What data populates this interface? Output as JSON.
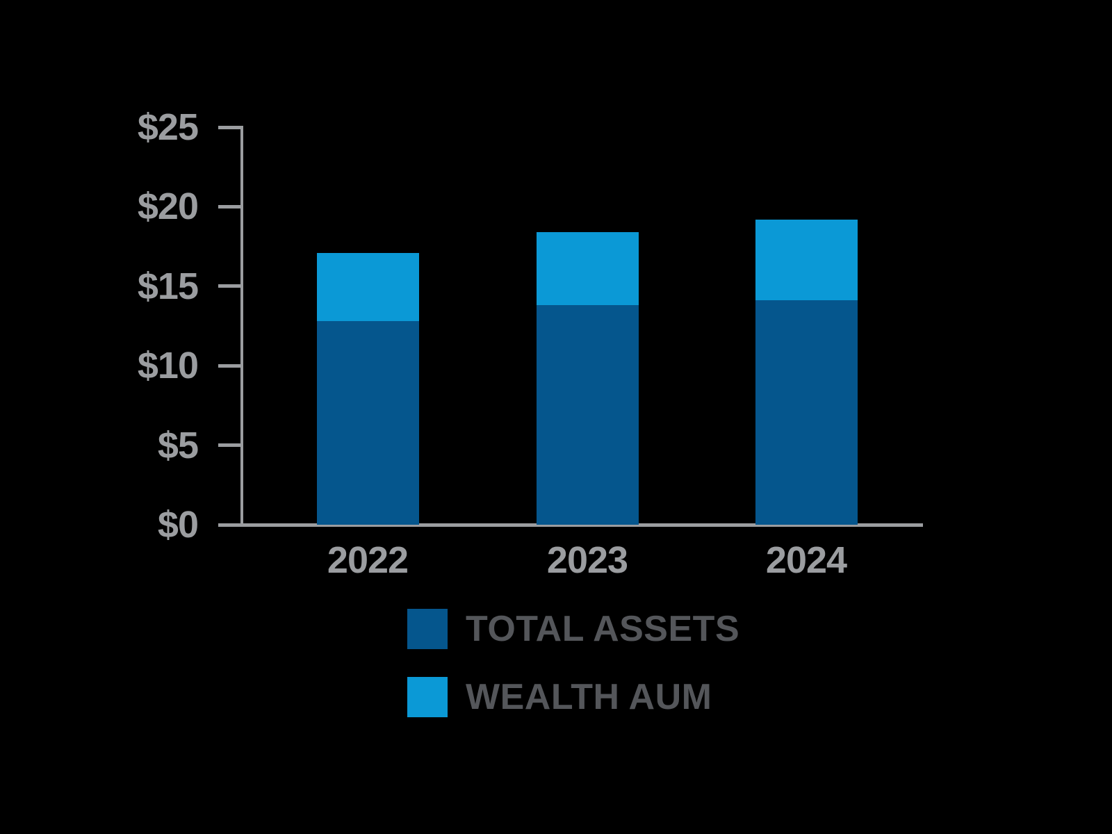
{
  "chart_data": {
    "type": "bar",
    "stacked": true,
    "categories": [
      "2022",
      "2023",
      "2024"
    ],
    "series": [
      {
        "name": "TOTAL ASSETS",
        "color": "#05568D",
        "values": [
          12.8,
          13.8,
          14.1
        ]
      },
      {
        "name": "WEALTH AUM",
        "color": "#0B99D6",
        "values": [
          4.3,
          4.6,
          5.1
        ]
      }
    ],
    "y_axis": {
      "min": 0,
      "max": 25,
      "tick_step": 5,
      "tick_labels": [
        "$0",
        "$5",
        "$10",
        "$15",
        "$20",
        "$25"
      ]
    },
    "x_axis": {
      "tick_labels": [
        "2022",
        "2023",
        "2024"
      ]
    },
    "grid": false,
    "legend_position": "bottom",
    "colors": {
      "background": "#000000",
      "axis": "#9B9DA0",
      "tick_label": "#9B9DA0",
      "legend_text": "#54565A"
    }
  }
}
